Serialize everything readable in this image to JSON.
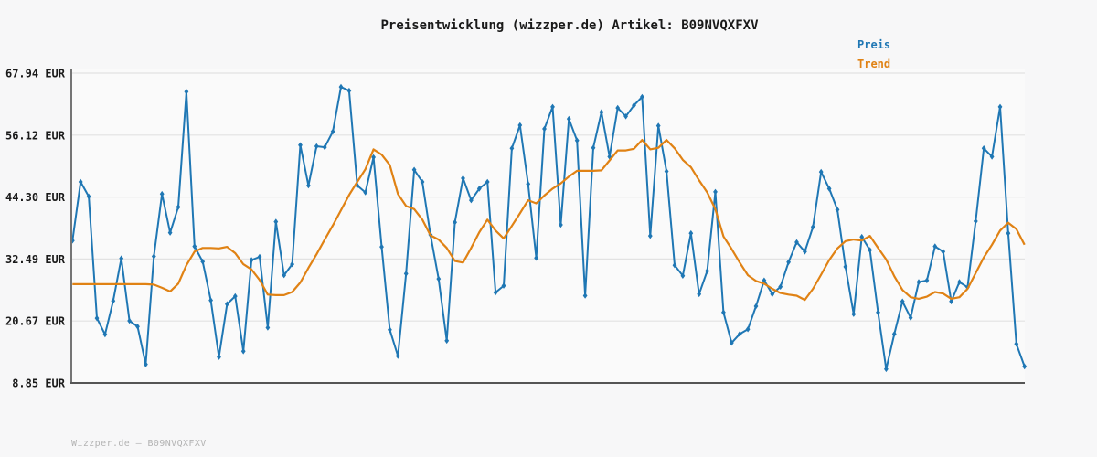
{
  "header": {
    "title": "Preisentwicklung (wizzper.de) Artikel: B09NVQXFXV"
  },
  "legend": {
    "items": [
      {
        "label": "Preis",
        "color": "#1f77b4"
      },
      {
        "label": "Trend",
        "color": "#e08214"
      }
    ]
  },
  "footer": {
    "watermark": "Wizzper.de — B09NVQXFXV"
  },
  "colors": {
    "preis_line": "#1f77b4",
    "trend_line": "#e08214",
    "gridline": "#e2e2e2",
    "left_spine": "#757575",
    "bottom_spine": "#555555",
    "plot_background": "#fafafa",
    "page_background": "#f7f7f8",
    "text": "#1a1a1a",
    "watermark_text": "#b3b3b3"
  },
  "chart_data": {
    "type": "line",
    "title": "Preisentwicklung (wizzper.de) Artikel: B09NVQXFXV",
    "currency": "EUR",
    "xlabel": "",
    "ylabel": "",
    "ylim": [
      8.85,
      67.94
    ],
    "grid": "horizontal",
    "legend_position": "top-right",
    "x_tick_labels": [],
    "y_ticks": {
      "values": [
        67.94,
        56.12,
        44.3,
        32.49,
        20.67,
        8.85
      ],
      "labels": [
        "67.94 EUR",
        "56.12 EUR",
        "44.30 EUR",
        "32.49 EUR",
        "20.67 EUR",
        "8.85 EUR"
      ]
    },
    "series": [
      {
        "name": "Preis",
        "color": "#1f77b4",
        "marker": "diamond",
        "values": [
          36.0,
          47.2,
          44.4,
          21.2,
          18.1,
          24.5,
          32.6,
          20.7,
          19.6,
          12.4,
          33.0,
          44.9,
          37.5,
          42.4,
          64.4,
          34.9,
          32.0,
          24.6,
          13.8,
          23.9,
          25.4,
          14.9,
          32.3,
          32.9,
          19.4,
          39.6,
          29.4,
          31.5,
          54.2,
          46.5,
          54.0,
          53.8,
          56.8,
          65.3,
          64.6,
          46.5,
          45.2,
          51.9,
          34.8,
          19.0,
          14.0,
          29.7,
          49.5,
          47.2,
          37.1,
          28.7,
          16.9,
          39.5,
          47.9,
          43.7,
          45.9,
          47.2,
          26.1,
          27.4,
          53.6,
          58.0,
          46.8,
          32.7,
          57.3,
          61.5,
          39.0,
          59.2,
          55.1,
          25.5,
          53.7,
          60.5,
          52.0,
          61.3,
          59.7,
          61.8,
          63.4,
          36.9,
          57.9,
          49.2,
          31.3,
          29.3,
          37.4,
          25.8,
          30.2,
          45.3,
          22.3,
          16.5,
          18.2,
          19.1,
          23.5,
          28.4,
          25.8,
          27.2,
          31.9,
          35.7,
          33.9,
          38.6,
          49.1,
          45.9,
          41.9,
          31.0,
          22.0,
          36.7,
          34.2,
          22.3,
          11.5,
          18.2,
          24.4,
          21.3,
          28.1,
          28.4,
          34.9,
          33.9,
          24.4,
          28.1,
          27.1,
          39.7,
          53.6,
          52.0,
          61.5,
          37.4,
          16.3,
          12.0
        ]
      },
      {
        "name": "Trend",
        "color": "#e08214",
        "marker": "none",
        "values": [
          27.7,
          27.7,
          27.7,
          27.7,
          27.7,
          27.7,
          27.7,
          27.7,
          27.7,
          27.7,
          27.6,
          27.0,
          26.3,
          27.8,
          31.3,
          33.9,
          34.6,
          34.6,
          34.5,
          34.8,
          33.6,
          31.5,
          30.5,
          28.5,
          25.7,
          25.6,
          25.6,
          26.2,
          28.0,
          30.8,
          33.4,
          36.2,
          38.9,
          41.8,
          44.7,
          47.2,
          49.6,
          53.4,
          52.4,
          50.4,
          44.9,
          42.6,
          42.0,
          40.0,
          37.0,
          36.2,
          34.6,
          32.1,
          31.8,
          34.6,
          37.6,
          40.0,
          37.9,
          36.4,
          38.8,
          41.2,
          43.7,
          43.1,
          44.6,
          45.9,
          46.9,
          48.2,
          49.3,
          49.3,
          49.3,
          49.4,
          51.3,
          53.2,
          53.2,
          53.5,
          55.2,
          53.4,
          53.7,
          55.2,
          53.6,
          51.4,
          50.0,
          47.5,
          45.2,
          42.0,
          36.8,
          34.4,
          31.8,
          29.4,
          28.3,
          27.8,
          26.8,
          26.0,
          25.7,
          25.5,
          24.7,
          26.8,
          29.5,
          32.3,
          34.5,
          35.9,
          36.2,
          36.0,
          36.9,
          34.6,
          32.4,
          29.2,
          26.6,
          25.2,
          24.9,
          25.3,
          26.2,
          25.9,
          24.9,
          25.2,
          26.8,
          29.8,
          32.8,
          35.2,
          37.9,
          39.4,
          38.2,
          35.2
        ]
      }
    ]
  }
}
